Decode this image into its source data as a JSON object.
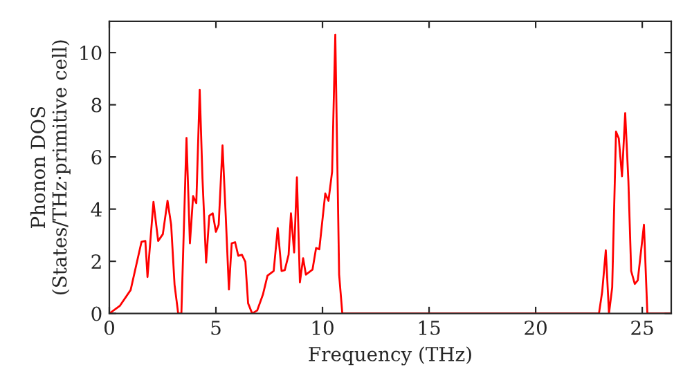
{
  "chart_data": {
    "type": "line",
    "xlabel": "Frequency (THz)",
    "ylabel": "Phonon DOS\n(States/THz·primitive cell)",
    "x": [
      0.0,
      0.5,
      1.0,
      1.51,
      1.69,
      1.79,
      2.07,
      2.29,
      2.51,
      2.73,
      2.9,
      3.06,
      3.23,
      3.38,
      3.62,
      3.78,
      3.93,
      4.08,
      4.24,
      4.37,
      4.54,
      4.69,
      4.85,
      5.0,
      5.13,
      5.31,
      5.46,
      5.61,
      5.74,
      5.9,
      6.05,
      6.22,
      6.38,
      6.51,
      6.7,
      6.94,
      7.21,
      7.42,
      7.71,
      7.9,
      8.08,
      8.23,
      8.41,
      8.52,
      8.67,
      8.8,
      8.94,
      9.09,
      9.22,
      9.53,
      9.7,
      9.85,
      10.13,
      10.28,
      10.45,
      10.6,
      10.78,
      10.93,
      22.97,
      23.12,
      23.29,
      23.44,
      23.59,
      23.77,
      23.9,
      24.05,
      24.2,
      24.35,
      24.48,
      24.65,
      24.79,
      25.08,
      25.24,
      26.36
    ],
    "series": [
      {
        "color": "#ff0000",
        "values": [
          0.0,
          0.3,
          0.9,
          2.75,
          2.78,
          1.4,
          4.28,
          2.78,
          3.04,
          4.32,
          3.4,
          1.1,
          0.0,
          0.0,
          6.73,
          2.69,
          4.5,
          4.23,
          8.57,
          5.17,
          1.95,
          3.75,
          3.84,
          3.13,
          3.4,
          6.44,
          3.75,
          0.92,
          2.69,
          2.73,
          2.21,
          2.25,
          1.98,
          0.39,
          0.0,
          0.12,
          0.74,
          1.45,
          1.63,
          3.27,
          1.63,
          1.66,
          2.25,
          3.84,
          2.34,
          5.22,
          1.19,
          2.12,
          1.49,
          1.68,
          2.51,
          2.46,
          4.6,
          4.32,
          5.43,
          10.69,
          1.49,
          0.0,
          0.0,
          0.83,
          2.42,
          0.0,
          1.0,
          6.97,
          6.71,
          5.26,
          7.68,
          5.08,
          1.63,
          1.13,
          1.27,
          3.4,
          0.0,
          0.0
        ]
      }
    ],
    "xlim": [
      0,
      26.36
    ],
    "ylim": [
      0,
      11.2
    ],
    "xticks": [
      0,
      5,
      10,
      15,
      20,
      25
    ],
    "yticks": [
      0,
      2,
      4,
      6,
      8,
      10
    ],
    "grid": false,
    "legend": false,
    "marker": "none",
    "line_style": "solid"
  }
}
